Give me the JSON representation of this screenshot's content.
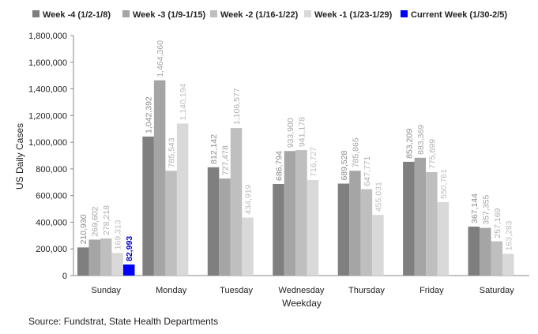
{
  "chart_data": {
    "type": "bar",
    "title": "",
    "xlabel": "Weekday",
    "ylabel": "US Daily Cases",
    "ylim": [
      0,
      1800000
    ],
    "yticks": [
      0,
      200000,
      400000,
      600000,
      800000,
      1000000,
      1200000,
      1400000,
      1600000,
      1800000
    ],
    "ytick_labels": [
      "0",
      "200,000",
      "400,000",
      "600,000",
      "800,000",
      "1,000,000",
      "1,200,000",
      "1,400,000",
      "1,600,000",
      "1,800,000"
    ],
    "grid": false,
    "legend_position": "top",
    "categories": [
      "Sunday",
      "Monday",
      "Tuesday",
      "Wednesday",
      "Thursday",
      "Friday",
      "Saturday"
    ],
    "series": [
      {
        "name": "Week -4 (1/2-1/8)",
        "color": "#7f7f7f",
        "label_color": "#8c8c8c",
        "values": [
          210930,
          1042392,
          812142,
          686794,
          689528,
          853209,
          367144
        ]
      },
      {
        "name": "Week -3 (1/9-1/15)",
        "color": "#a5a5a5",
        "label_color": "#a5a5a5",
        "values": [
          269602,
          1464360,
          727478,
          933900,
          785865,
          883369,
          357355
        ]
      },
      {
        "name": "Week -2 (1/16-1/22)",
        "color": "#bfbfbf",
        "label_color": "#b0b0b0",
        "values": [
          278218,
          785543,
          1106577,
          941178,
          647771,
          775699,
          257169
        ]
      },
      {
        "name": "Week -1 (1/23-1/29)",
        "color": "#d9d9d9",
        "label_color": "#bdbdbd",
        "values": [
          169313,
          1140194,
          434919,
          716727,
          455031,
          550761,
          163283
        ]
      },
      {
        "name": "Current Week (1/30-2/5)",
        "color": "#0000ff",
        "label_color": "#0000cc",
        "values": [
          82993,
          null,
          null,
          null,
          null,
          null,
          null
        ]
      }
    ],
    "data_labels": [
      [
        "210,930",
        "1,042,392",
        "812,142",
        "686,794",
        "689,528",
        "853,209",
        "367,144"
      ],
      [
        "269,602",
        "1,464,360",
        "727,478",
        "933,900",
        "785,865",
        "883,369",
        "357,355"
      ],
      [
        "278,218",
        "785,543",
        "1,106,577",
        "941,178",
        "647,771",
        "775,699",
        "257,169"
      ],
      [
        "169,313",
        "1,140,194",
        "434,919",
        "716,727",
        "455,031",
        "550,761",
        "163,283"
      ],
      [
        "82,993",
        "",
        "",
        "",
        "",
        "",
        ""
      ]
    ]
  },
  "source_note": "Source: Fundstrat, State Health Departments"
}
